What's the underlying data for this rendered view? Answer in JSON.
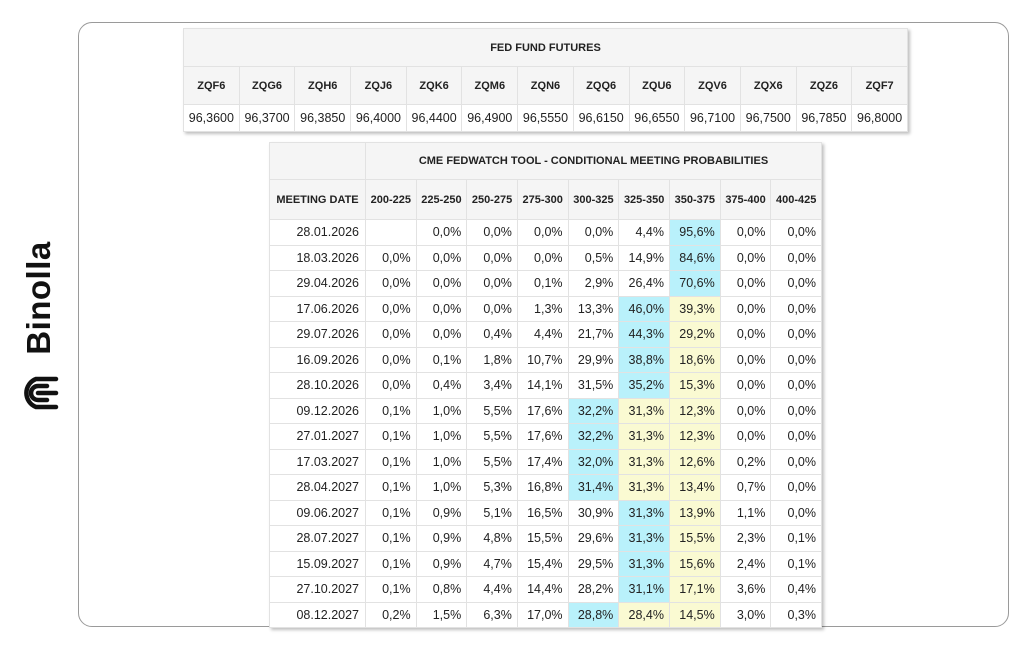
{
  "brand": {
    "name": "Binolla"
  },
  "futures": {
    "title": "FED FUND FUTURES",
    "columns": [
      "ZQF6",
      "ZQG6",
      "ZQH6",
      "ZQJ6",
      "ZQK6",
      "ZQM6",
      "ZQN6",
      "ZQQ6",
      "ZQU6",
      "ZQV6",
      "ZQX6",
      "ZQZ6",
      "ZQF7"
    ],
    "values": [
      "96,3600",
      "96,3700",
      "96,3850",
      "96,4000",
      "96,4400",
      "96,4900",
      "96,5550",
      "96,6150",
      "96,6550",
      "96,7100",
      "96,7500",
      "96,7850",
      "96,8000"
    ]
  },
  "fedwatch": {
    "title": "CME FEDWATCH TOOL - CONDITIONAL MEETING PROBABILITIES",
    "date_header": "MEETING DATE",
    "columns": [
      "200-225",
      "225-250",
      "250-275",
      "275-300",
      "300-325",
      "325-350",
      "350-375",
      "375-400",
      "400-425"
    ],
    "colors": {
      "highest": "#b9f1fb",
      "secondary": "#fafad2"
    },
    "rows": [
      {
        "date": "28.01.2026",
        "values": [
          "",
          "0,0%",
          "0,0%",
          "0,0%",
          "0,0%",
          "4,4%",
          "95,6%",
          "0,0%",
          "0,0%"
        ],
        "highest": [
          6
        ],
        "secondary": []
      },
      {
        "date": "18.03.2026",
        "values": [
          "0,0%",
          "0,0%",
          "0,0%",
          "0,0%",
          "0,5%",
          "14,9%",
          "84,6%",
          "0,0%",
          "0,0%"
        ],
        "highest": [
          6
        ],
        "secondary": []
      },
      {
        "date": "29.04.2026",
        "values": [
          "0,0%",
          "0,0%",
          "0,0%",
          "0,1%",
          "2,9%",
          "26,4%",
          "70,6%",
          "0,0%",
          "0,0%"
        ],
        "highest": [
          6
        ],
        "secondary": []
      },
      {
        "date": "17.06.2026",
        "values": [
          "0,0%",
          "0,0%",
          "0,0%",
          "1,3%",
          "13,3%",
          "46,0%",
          "39,3%",
          "0,0%",
          "0,0%"
        ],
        "highest": [
          5
        ],
        "secondary": [
          6
        ]
      },
      {
        "date": "29.07.2026",
        "values": [
          "0,0%",
          "0,0%",
          "0,4%",
          "4,4%",
          "21,7%",
          "44,3%",
          "29,2%",
          "0,0%",
          "0,0%"
        ],
        "highest": [
          5
        ],
        "secondary": [
          6
        ]
      },
      {
        "date": "16.09.2026",
        "values": [
          "0,0%",
          "0,1%",
          "1,8%",
          "10,7%",
          "29,9%",
          "38,8%",
          "18,6%",
          "0,0%",
          "0,0%"
        ],
        "highest": [
          5
        ],
        "secondary": [
          6
        ]
      },
      {
        "date": "28.10.2026",
        "values": [
          "0,0%",
          "0,4%",
          "3,4%",
          "14,1%",
          "31,5%",
          "35,2%",
          "15,3%",
          "0,0%",
          "0,0%"
        ],
        "highest": [
          5
        ],
        "secondary": [
          6
        ]
      },
      {
        "date": "09.12.2026",
        "values": [
          "0,1%",
          "1,0%",
          "5,5%",
          "17,6%",
          "32,2%",
          "31,3%",
          "12,3%",
          "0,0%",
          "0,0%"
        ],
        "highest": [
          4
        ],
        "secondary": [
          5,
          6
        ]
      },
      {
        "date": "27.01.2027",
        "values": [
          "0,1%",
          "1,0%",
          "5,5%",
          "17,6%",
          "32,2%",
          "31,3%",
          "12,3%",
          "0,0%",
          "0,0%"
        ],
        "highest": [
          4
        ],
        "secondary": [
          5,
          6
        ]
      },
      {
        "date": "17.03.2027",
        "values": [
          "0,1%",
          "1,0%",
          "5,5%",
          "17,4%",
          "32,0%",
          "31,3%",
          "12,6%",
          "0,2%",
          "0,0%"
        ],
        "highest": [
          4
        ],
        "secondary": [
          5,
          6
        ]
      },
      {
        "date": "28.04.2027",
        "values": [
          "0,1%",
          "1,0%",
          "5,3%",
          "16,8%",
          "31,4%",
          "31,3%",
          "13,4%",
          "0,7%",
          "0,0%"
        ],
        "highest": [
          4
        ],
        "secondary": [
          5,
          6
        ]
      },
      {
        "date": "09.06.2027",
        "values": [
          "0,1%",
          "0,9%",
          "5,1%",
          "16,5%",
          "30,9%",
          "31,3%",
          "13,9%",
          "1,1%",
          "0,0%"
        ],
        "highest": [
          5
        ],
        "secondary": [
          6
        ]
      },
      {
        "date": "28.07.2027",
        "values": [
          "0,1%",
          "0,9%",
          "4,8%",
          "15,5%",
          "29,6%",
          "31,3%",
          "15,5%",
          "2,3%",
          "0,1%"
        ],
        "highest": [
          5
        ],
        "secondary": [
          6
        ]
      },
      {
        "date": "15.09.2027",
        "values": [
          "0,1%",
          "0,9%",
          "4,7%",
          "15,4%",
          "29,5%",
          "31,3%",
          "15,6%",
          "2,4%",
          "0,1%"
        ],
        "highest": [
          5
        ],
        "secondary": [
          6
        ]
      },
      {
        "date": "27.10.2027",
        "values": [
          "0,1%",
          "0,8%",
          "4,4%",
          "14,4%",
          "28,2%",
          "31,1%",
          "17,1%",
          "3,6%",
          "0,4%"
        ],
        "highest": [
          5
        ],
        "secondary": [
          6
        ]
      },
      {
        "date": "08.12.2027",
        "values": [
          "0,2%",
          "1,5%",
          "6,3%",
          "17,0%",
          "28,8%",
          "28,4%",
          "14,5%",
          "3,0%",
          "0,3%"
        ],
        "highest": [
          4
        ],
        "secondary": [
          5,
          6
        ]
      }
    ]
  }
}
